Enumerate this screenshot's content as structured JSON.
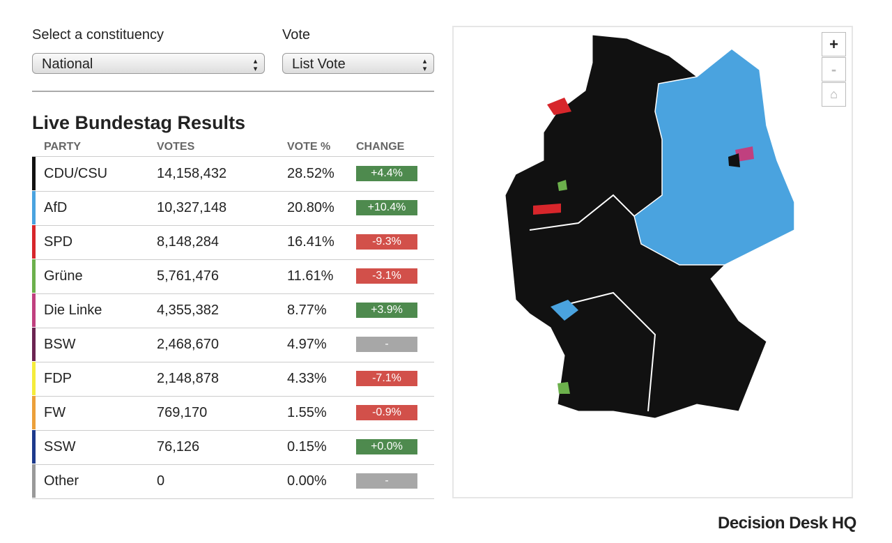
{
  "controls": {
    "constituency_label": "Select a constituency",
    "constituency_value": "National",
    "vote_label": "Vote",
    "vote_value": "List Vote"
  },
  "table": {
    "title": "Live Bundestag Results",
    "headers": [
      "PARTY",
      "VOTES",
      "VOTE %",
      "CHANGE"
    ],
    "rows": [
      {
        "party": "CDU/CSU",
        "votes": "14,158,432",
        "pct": "28.52%",
        "change": "+4.4%",
        "color": "#111111",
        "change_color": "#4e8a4e"
      },
      {
        "party": "AfD",
        "votes": "10,327,148",
        "pct": "20.80%",
        "change": "+10.4%",
        "color": "#4aa3df",
        "change_color": "#4e8a4e"
      },
      {
        "party": "SPD",
        "votes": "8,148,284",
        "pct": "16.41%",
        "change": "-9.3%",
        "color": "#d7262b",
        "change_color": "#d2504a"
      },
      {
        "party": "Grüne",
        "votes": "5,761,476",
        "pct": "11.61%",
        "change": "-3.1%",
        "color": "#6cb04c",
        "change_color": "#d2504a"
      },
      {
        "party": "Die Linke",
        "votes": "4,355,382",
        "pct": "8.77%",
        "change": "+3.9%",
        "color": "#c0407f",
        "change_color": "#4e8a4e"
      },
      {
        "party": "BSW",
        "votes": "2,468,670",
        "pct": "4.97%",
        "change": "-",
        "color": "#6b2451",
        "change_color": "#a7a7a7"
      },
      {
        "party": "FDP",
        "votes": "2,148,878",
        "pct": "4.33%",
        "change": "-7.1%",
        "color": "#f5ec3c",
        "change_color": "#d2504a"
      },
      {
        "party": "FW",
        "votes": "769,170",
        "pct": "1.55%",
        "change": "-0.9%",
        "color": "#eca03a",
        "change_color": "#d2504a"
      },
      {
        "party": "SSW",
        "votes": "76,126",
        "pct": "0.15%",
        "change": "+0.0%",
        "color": "#1d3a8c",
        "change_color": "#4e8a4e"
      },
      {
        "party": "Other",
        "votes": "0",
        "pct": "0.00%",
        "change": "-",
        "color": "#999999",
        "change_color": "#a7a7a7"
      }
    ]
  },
  "map": {
    "zoom_in": "+",
    "zoom_out": "-"
  },
  "logo": "Decision Desk HQ"
}
